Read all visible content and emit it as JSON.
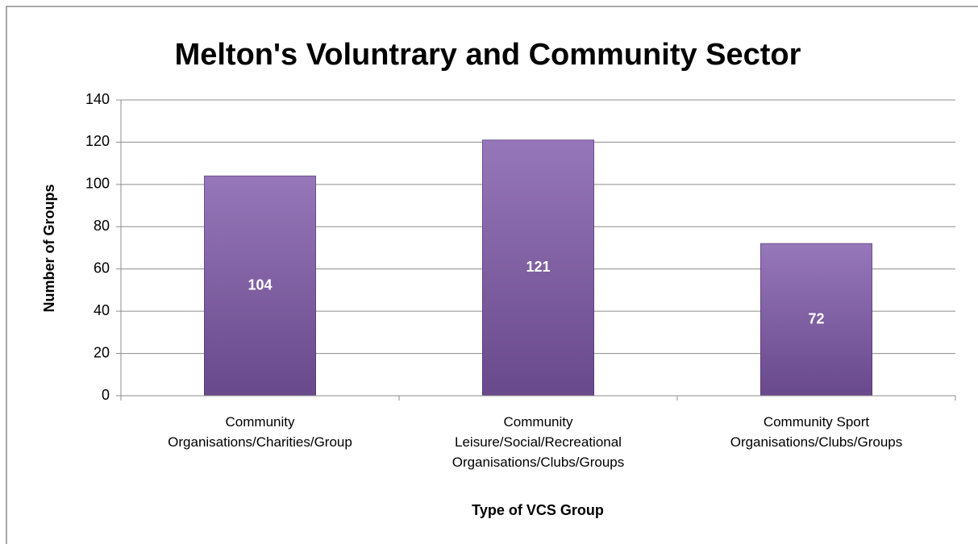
{
  "chart_data": {
    "type": "bar",
    "title": "Melton's Voluntrary and Community Sector",
    "x_label": "Type of VCS Group",
    "y_label": "Number of Groups",
    "categories": [
      "Community\nOrganisations/Charities/Group",
      "Community\nLeisure/Social/Recreational\nOrganisations/Clubs/Groups",
      "Community Sport\nOrganisations/Clubs/Groups"
    ],
    "values": [
      104,
      121,
      72
    ],
    "color": "#7f59a9",
    "ylim": [
      0,
      140
    ],
    "yticks": [
      0,
      20,
      40,
      60,
      80,
      100,
      120,
      140
    ],
    "grid": true
  }
}
